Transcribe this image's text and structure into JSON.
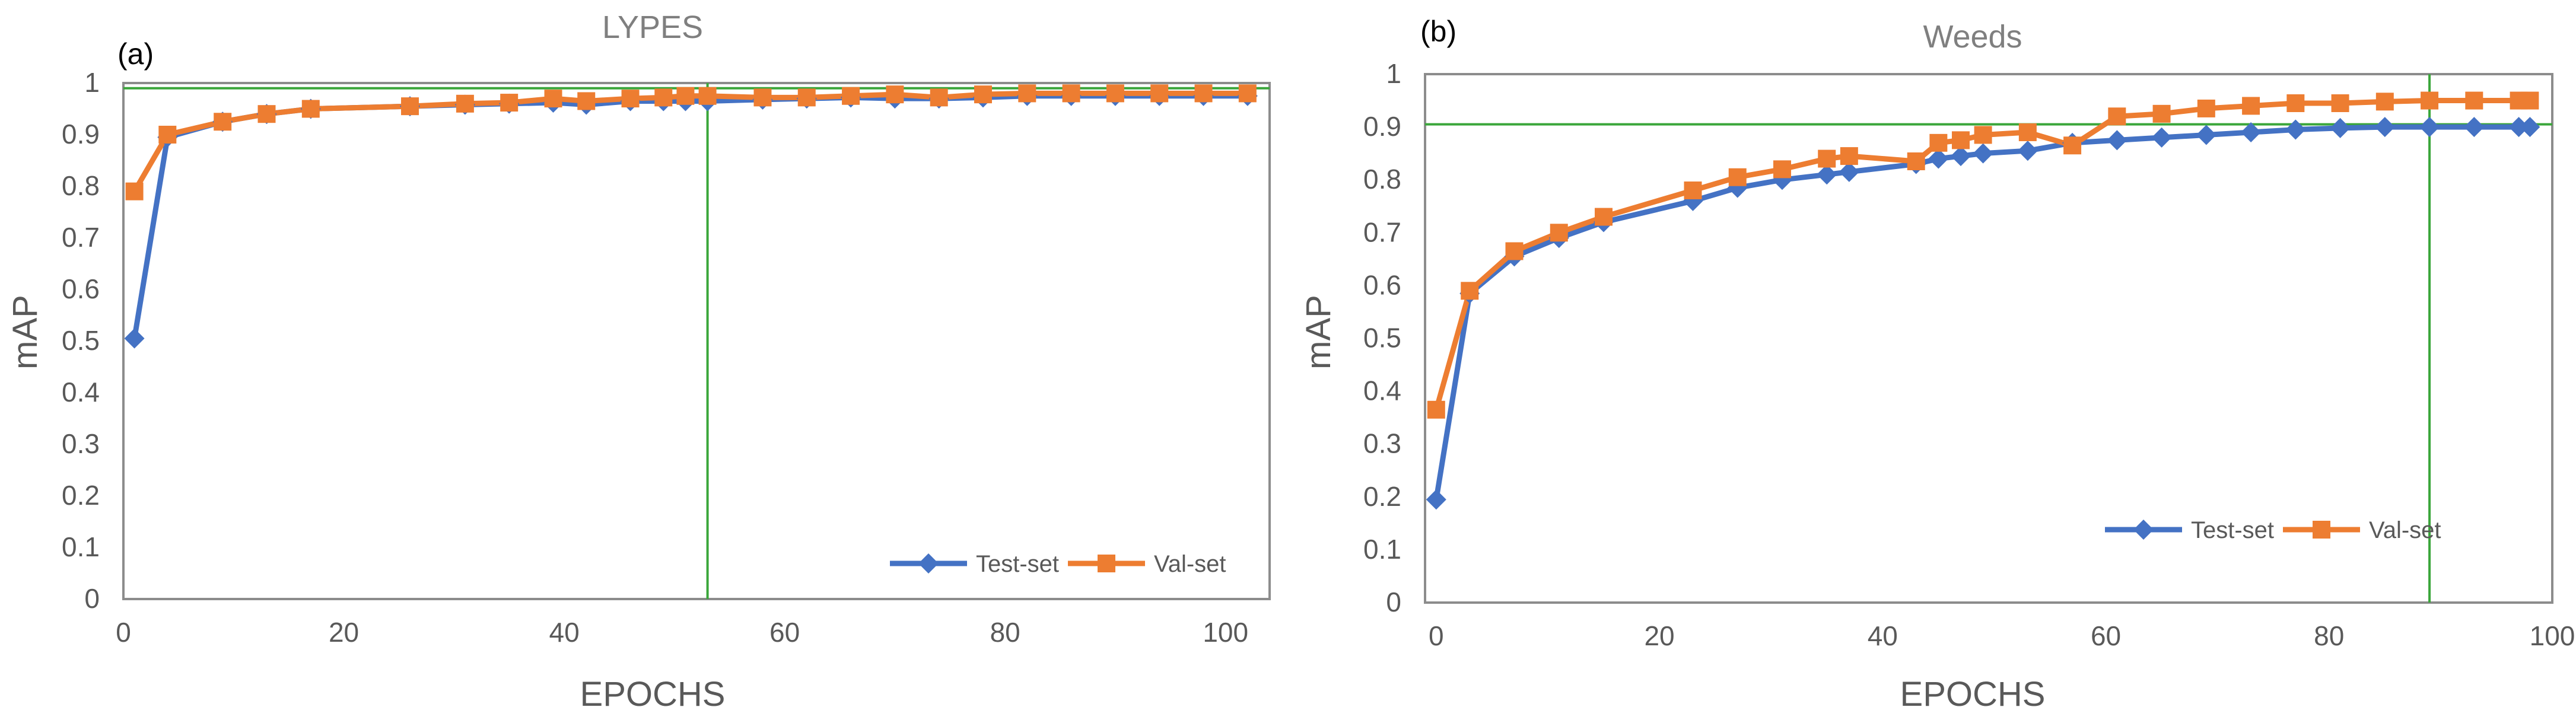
{
  "chart_data": [
    {
      "type": "line",
      "panel_label": "(a)",
      "title": "LYPES",
      "xlabel": "EPOCHS",
      "ylabel": "mAP",
      "xlim": [
        0,
        104
      ],
      "ylim": [
        0,
        1
      ],
      "xticks": [
        0,
        20,
        40,
        60,
        80,
        100
      ],
      "yticks": [
        0,
        0.1,
        0.2,
        0.3,
        0.4,
        0.5,
        0.6,
        0.7,
        0.8,
        0.9,
        1
      ],
      "ytick_labels": [
        "0",
        "0.1",
        "0.2",
        "0.3",
        "0.4",
        "0.5",
        "0.6",
        "0.7",
        "0.8",
        "0.9",
        "1"
      ],
      "grid": false,
      "legend_position": "bottom-right",
      "reference_lines": {
        "horizontal_y": 0.99,
        "vertical_x": 53,
        "color": "#3aa63a"
      },
      "series": [
        {
          "name": "Test-set",
          "color": "#4472c4",
          "marker": "diamond",
          "x": [
            1,
            4,
            9,
            13,
            17,
            26,
            31,
            35,
            39,
            42,
            46,
            49,
            51,
            53,
            58,
            62,
            66,
            70,
            74,
            78,
            82,
            86,
            90,
            94,
            98,
            102
          ],
          "y": [
            0.505,
            0.895,
            0.925,
            0.94,
            0.95,
            0.955,
            0.958,
            0.96,
            0.962,
            0.958,
            0.965,
            0.965,
            0.965,
            0.965,
            0.968,
            0.97,
            0.972,
            0.97,
            0.97,
            0.972,
            0.975,
            0.975,
            0.975,
            0.975,
            0.975,
            0.975
          ]
        },
        {
          "name": "Val-set",
          "color": "#ed7d31",
          "marker": "square",
          "x": [
            1,
            4,
            9,
            13,
            17,
            26,
            31,
            35,
            39,
            42,
            46,
            49,
            51,
            53,
            58,
            62,
            66,
            70,
            74,
            78,
            82,
            86,
            90,
            94,
            98,
            102
          ],
          "y": [
            0.79,
            0.9,
            0.925,
            0.94,
            0.95,
            0.955,
            0.96,
            0.962,
            0.97,
            0.965,
            0.97,
            0.972,
            0.975,
            0.975,
            0.972,
            0.972,
            0.975,
            0.978,
            0.972,
            0.978,
            0.98,
            0.98,
            0.98,
            0.98,
            0.98,
            0.98
          ]
        }
      ]
    },
    {
      "type": "line",
      "panel_label": "(b)",
      "title": "Weeds",
      "xlabel": "EPOCHS",
      "ylabel": "mAP",
      "xlim": [
        -1,
        100
      ],
      "ylim": [
        0,
        1
      ],
      "xticks": [
        0,
        20,
        40,
        60,
        80,
        100
      ],
      "yticks": [
        0,
        0.1,
        0.2,
        0.3,
        0.4,
        0.5,
        0.6,
        0.7,
        0.8,
        0.9,
        1
      ],
      "ytick_labels": [
        "0",
        "0.1",
        "0.2",
        "0.3",
        "0.4",
        "0.5",
        "0.6",
        "0.7",
        "0.8",
        "0.9",
        "1"
      ],
      "grid": false,
      "legend_position": "bottom-right",
      "reference_lines": {
        "horizontal_y": 0.905,
        "vertical_x": 89,
        "color": "#3aa63a"
      },
      "series": [
        {
          "name": "Test-set",
          "color": "#4472c4",
          "marker": "diamond",
          "x": [
            0,
            3,
            7,
            11,
            15,
            23,
            27,
            31,
            35,
            37,
            43,
            45,
            47,
            49,
            53,
            57,
            61,
            65,
            69,
            73,
            77,
            81,
            85,
            89,
            93,
            97,
            98
          ],
          "y": [
            0.195,
            0.585,
            0.655,
            0.69,
            0.72,
            0.76,
            0.785,
            0.8,
            0.81,
            0.815,
            0.83,
            0.84,
            0.845,
            0.85,
            0.855,
            0.87,
            0.875,
            0.88,
            0.885,
            0.89,
            0.895,
            0.898,
            0.9,
            0.9,
            0.9,
            0.9,
            0.9
          ]
        },
        {
          "name": "Val-set",
          "color": "#ed7d31",
          "marker": "square",
          "x": [
            0,
            3,
            7,
            11,
            15,
            23,
            27,
            31,
            35,
            37,
            43,
            45,
            47,
            49,
            53,
            57,
            61,
            65,
            69,
            73,
            77,
            81,
            85,
            89,
            93,
            97,
            98
          ],
          "y": [
            0.365,
            0.59,
            0.665,
            0.7,
            0.73,
            0.78,
            0.805,
            0.82,
            0.84,
            0.845,
            0.835,
            0.87,
            0.875,
            0.885,
            0.89,
            0.865,
            0.92,
            0.925,
            0.935,
            0.94,
            0.945,
            0.945,
            0.948,
            0.95,
            0.95,
            0.95,
            0.95
          ]
        }
      ]
    }
  ]
}
